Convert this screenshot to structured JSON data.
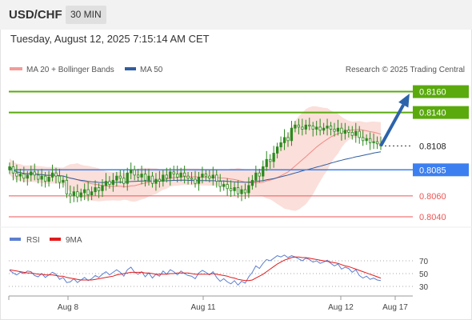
{
  "header": {
    "symbol": "USD/CHF",
    "interval": "30 MIN"
  },
  "datetime": "Tuesday, August 12, 2025 7:15:14 AM CET",
  "legend": {
    "ma20_bb": "MA 20 + Bollinger Bands",
    "ma50": "MA 50",
    "rsi": "RSI",
    "ma9": "9MA",
    "credit": "Research © 2025 Trading Central"
  },
  "colors": {
    "bollinger_fill": "#fad9d4",
    "ma20": "#f08a86",
    "ma50": "#2f5d9e",
    "candle": "#2b8a1e",
    "target_green": "#5aaa0e",
    "pivot_blue": "#3c7ff0",
    "support_red": "#ee5555",
    "arrow": "#2d63aa",
    "rsi": "#5c7fd1",
    "rsi_ma": "#e21b1b"
  },
  "chart_data": [
    {
      "type": "candlestick",
      "x_ticks": [
        "Aug 8",
        "Aug 11",
        "Aug 12",
        "Aug 17"
      ],
      "ylim": [
        0.803,
        0.8175
      ],
      "close_series": [
        0.8088,
        0.8082,
        0.8079,
        0.8081,
        0.8077,
        0.808,
        0.8083,
        0.808,
        0.8076,
        0.8079,
        0.8074,
        0.8078,
        0.8082,
        0.8079,
        0.8073,
        0.8075,
        0.8062,
        0.806,
        0.8064,
        0.8059,
        0.8063,
        0.8066,
        0.8061,
        0.8064,
        0.8068,
        0.8065,
        0.807,
        0.8074,
        0.8071,
        0.8075,
        0.8079,
        0.8077,
        0.8072,
        0.8082,
        0.8085,
        0.808,
        0.8078,
        0.8081,
        0.8075,
        0.8079,
        0.8072,
        0.8076,
        0.8074,
        0.808,
        0.8077,
        0.8083,
        0.8081,
        0.8078,
        0.8082,
        0.8079,
        0.8077,
        0.8076,
        0.8072,
        0.8078,
        0.8081,
        0.8079,
        0.8077,
        0.808,
        0.8074,
        0.8069,
        0.8071,
        0.8067,
        0.8065,
        0.8068,
        0.8062,
        0.8066,
        0.8063,
        0.807,
        0.8075,
        0.8082,
        0.8079,
        0.8088,
        0.8095,
        0.8093,
        0.8101,
        0.8107,
        0.8111,
        0.8116,
        0.8113,
        0.8125,
        0.8128,
        0.8126,
        0.8124,
        0.8128,
        0.8127,
        0.8124,
        0.8126,
        0.8123,
        0.8125,
        0.8127,
        0.8124,
        0.8122,
        0.8125,
        0.812,
        0.8123,
        0.8121,
        0.8118,
        0.8122,
        0.8116,
        0.8113,
        0.8115,
        0.8111,
        0.8112,
        0.811,
        0.8108
      ],
      "levels": [
        {
          "value": 0.816,
          "label": "0.8160",
          "kind": "target"
        },
        {
          "value": 0.814,
          "label": "0.8140",
          "kind": "target"
        },
        {
          "value": 0.8108,
          "label": "0.8108",
          "kind": "last"
        },
        {
          "value": 0.8085,
          "label": "0.8085",
          "kind": "pivot"
        },
        {
          "value": 0.806,
          "label": "0.8060",
          "kind": "support"
        },
        {
          "value": 0.804,
          "label": "0.8040",
          "kind": "support"
        }
      ]
    },
    {
      "type": "line",
      "name": "RSI",
      "ylim": [
        20,
        80
      ],
      "y_ticks": [
        "70",
        "50",
        "30"
      ],
      "rsi_series": [
        55,
        51,
        48,
        52,
        50,
        54,
        53,
        47,
        45,
        50,
        44,
        48,
        52,
        49,
        41,
        44,
        36,
        37,
        42,
        36,
        40,
        44,
        39,
        42,
        47,
        44,
        49,
        53,
        48,
        52,
        56,
        52,
        46,
        56,
        60,
        52,
        49,
        53,
        45,
        51,
        43,
        49,
        46,
        54,
        49,
        56,
        53,
        48,
        54,
        50,
        47,
        46,
        42,
        51,
        55,
        52,
        48,
        53,
        44,
        38,
        42,
        37,
        34,
        39,
        32,
        38,
        35,
        45,
        52,
        62,
        58,
        66,
        72,
        70,
        74,
        78,
        76,
        79,
        75,
        78,
        76,
        73,
        70,
        74,
        72,
        68,
        70,
        66,
        68,
        71,
        66,
        62,
        65,
        57,
        60,
        58,
        52,
        56,
        47,
        43,
        46,
        41,
        43,
        40,
        39
      ],
      "rsi_ma_series": [
        56,
        55,
        54,
        53,
        52,
        51,
        51,
        50,
        49,
        49,
        48,
        48,
        48,
        47,
        46,
        46,
        44,
        43,
        42,
        41,
        40,
        40,
        40,
        40,
        41,
        42,
        43,
        44,
        45,
        46,
        48,
        49,
        50,
        51,
        52,
        52,
        52,
        52,
        51,
        51,
        50,
        49,
        49,
        49,
        49,
        50,
        50,
        51,
        51,
        51,
        51,
        50,
        49,
        49,
        49,
        49,
        49,
        50,
        49,
        48,
        47,
        46,
        44,
        43,
        41,
        40,
        39,
        39,
        40,
        43,
        46,
        49,
        53,
        57,
        61,
        65,
        68,
        71,
        73,
        75,
        76,
        76,
        75,
        75,
        74,
        73,
        72,
        71,
        70,
        69,
        68,
        67,
        66,
        64,
        62,
        61,
        59,
        57,
        55,
        53,
        51,
        49,
        47,
        45,
        43
      ]
    }
  ]
}
